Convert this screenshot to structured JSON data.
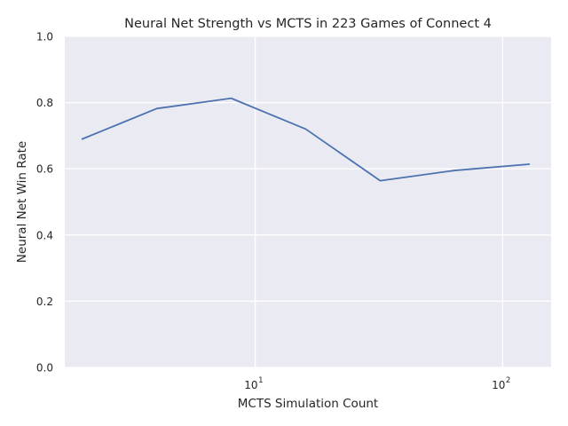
{
  "chart_data": {
    "type": "line",
    "title": "Neural Net Strength vs MCTS in 223 Games of Connect 4",
    "xlabel": "MCTS Simulation Count",
    "ylabel": "Neural Net Win Rate",
    "xscale": "log",
    "xlim": [
      1.7,
      157
    ],
    "ylim": [
      0,
      1
    ],
    "grid": true,
    "legend": "none",
    "x": [
      2,
      4,
      8,
      16,
      32,
      64,
      128
    ],
    "series": [
      {
        "values": [
          0.69,
          0.782,
          0.813,
          0.72,
          0.564,
          0.595,
          0.614
        ]
      }
    ],
    "x_ticks": [
      {
        "value": 10,
        "base": "10",
        "exponent": "1"
      },
      {
        "value": 100,
        "base": "10",
        "exponent": "2"
      }
    ],
    "y_ticks": [
      {
        "value": 0,
        "label": "0.0"
      },
      {
        "value": 0.2,
        "label": "0.2"
      },
      {
        "value": 0.4,
        "label": "0.4"
      },
      {
        "value": 0.6,
        "label": "0.6"
      },
      {
        "value": 0.8,
        "label": "0.8"
      },
      {
        "value": 1,
        "label": "1.0"
      }
    ],
    "colors": {
      "background": "#eaeaf2",
      "grid": "#ffffff",
      "line": "#4c72b0"
    }
  }
}
